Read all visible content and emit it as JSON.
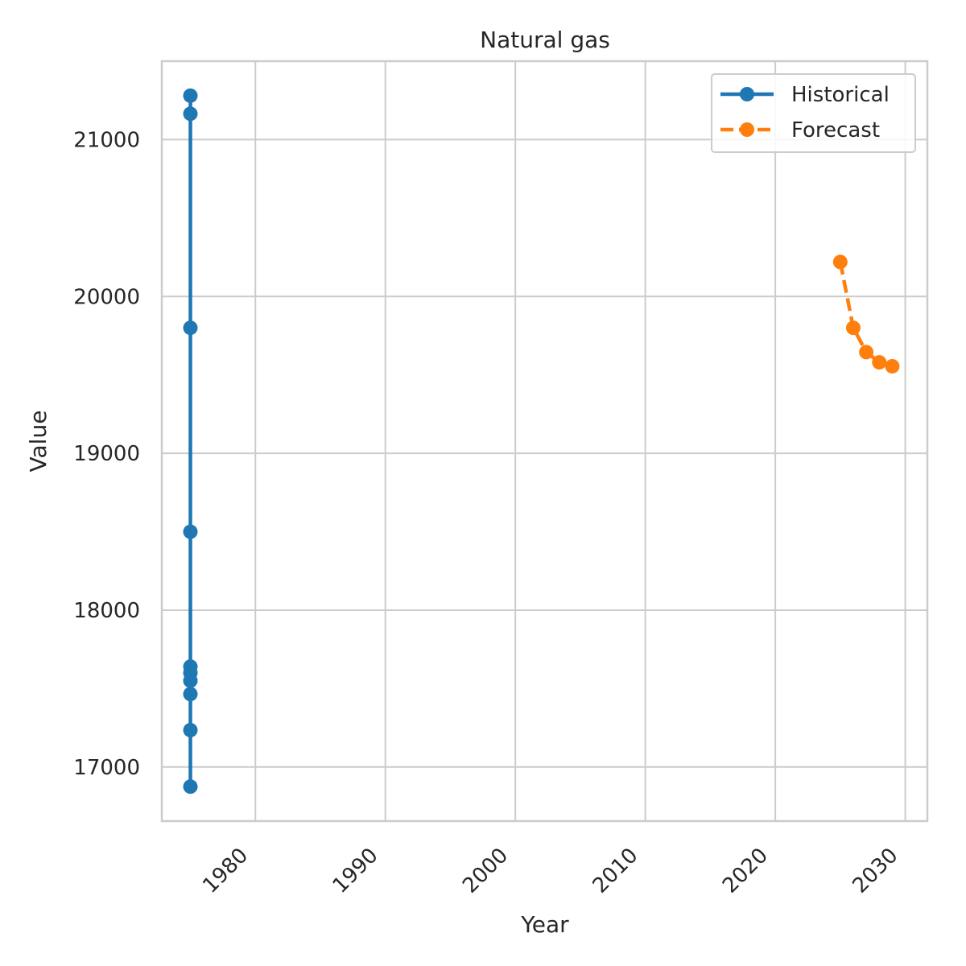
{
  "chart_data": {
    "type": "line",
    "title": "Natural gas",
    "xlabel": "Year",
    "ylabel": "Value",
    "xlim": [
      1972.8,
      2031.7
    ],
    "ylim": [
      16655,
      21500
    ],
    "xticks": [
      "1980",
      "1990",
      "2000",
      "2010",
      "2020",
      "2030"
    ],
    "yticks": [
      "17000",
      "18000",
      "19000",
      "20000",
      "21000"
    ],
    "grid": true,
    "legend": {
      "position": "top-right",
      "entries": [
        "Historical",
        "Forecast"
      ]
    },
    "series": [
      {
        "name": "Historical",
        "color": "#1f77b4",
        "line_style": "solid",
        "x": [
          1975.0,
          1975.0,
          1975.0,
          1975.0,
          1975.0,
          1975.0,
          1975.0,
          1975.0,
          1975.0,
          1975.0
        ],
        "y": [
          21280,
          21165,
          19800,
          18500,
          17640,
          17600,
          17550,
          17465,
          17235,
          16875
        ]
      },
      {
        "name": "Forecast",
        "color": "#ff7f0e",
        "line_style": "dashed",
        "x": [
          2025,
          2026,
          2027,
          2028,
          2029
        ],
        "y": [
          20220,
          19800,
          19645,
          19580,
          19555
        ]
      }
    ]
  }
}
